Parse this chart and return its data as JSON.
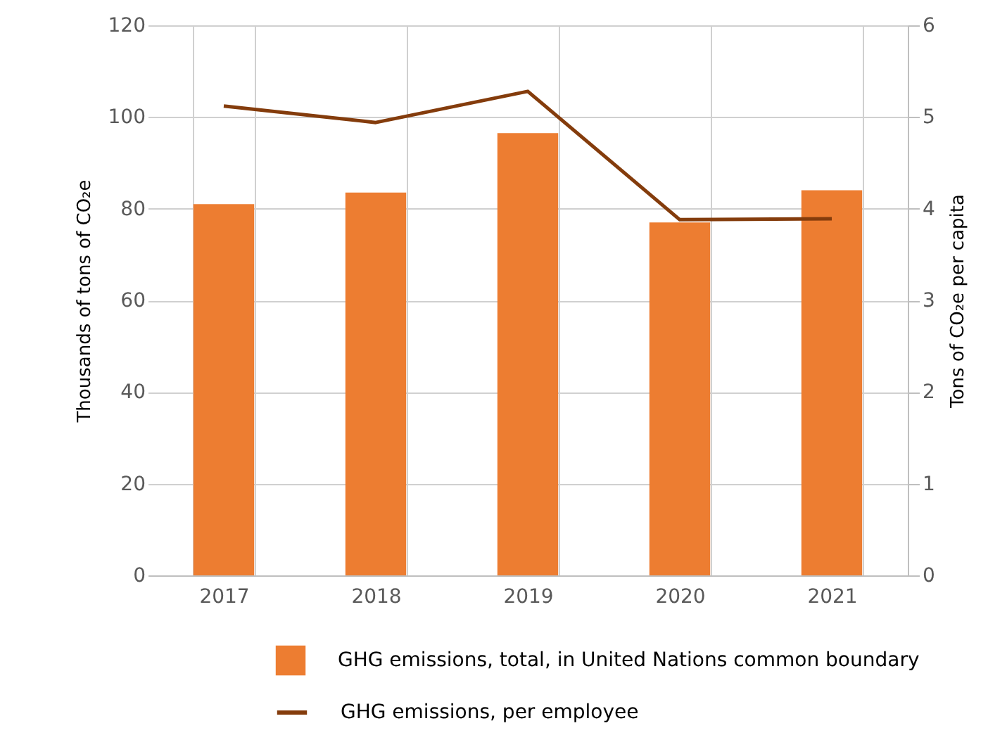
{
  "chart_data": {
    "type": "bar",
    "categories": [
      "2017",
      "2018",
      "2019",
      "2020",
      "2021"
    ],
    "ylabel": "Thousands of tons of CO₂e",
    "y2label": "Tons of CO₂e per capita",
    "series": [
      {
        "name": "GHG emissions, total, in United Nations common boundary",
        "color": "#ed7d31",
        "values": [
          81,
          83.5,
          96.5,
          77,
          84
        ]
      },
      {
        "name": "GHG emissions, per employee",
        "type": "line",
        "axis": "y2",
        "color": "#843c0c",
        "values": [
          5.12,
          4.94,
          5.28,
          3.88,
          3.89
        ]
      }
    ],
    "ylim": [
      0,
      120
    ],
    "yticks": [
      0,
      20,
      40,
      60,
      80,
      100,
      120
    ],
    "y2lim": [
      0,
      6
    ],
    "y2ticks": [
      0,
      1,
      2,
      3,
      4,
      5,
      6
    ],
    "grid": true,
    "legend": "bottom",
    "marker": "none",
    "line_style": "solid"
  }
}
